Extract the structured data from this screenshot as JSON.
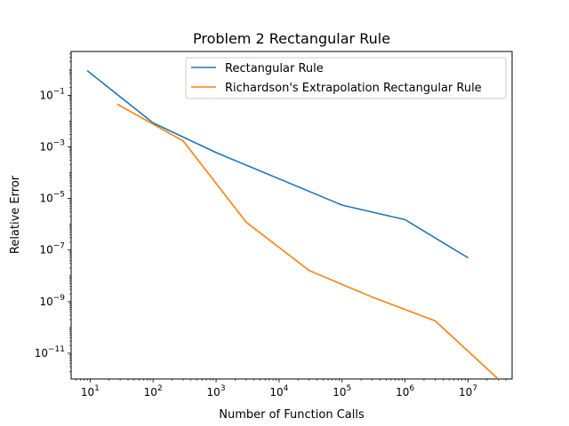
{
  "chart_data": {
    "type": "line",
    "title": "Problem 2 Rectangular Rule",
    "xlabel": "Number of Function Calls",
    "ylabel": "Relative Error",
    "xscale": "log",
    "yscale": "log",
    "xlim": [
      5,
      50000000
    ],
    "ylim": [
      1e-12,
      5
    ],
    "grid": false,
    "legend_position": "top-right",
    "x_ticks": [
      {
        "value": 10,
        "base": "10",
        "exp": "1"
      },
      {
        "value": 100,
        "base": "10",
        "exp": "2"
      },
      {
        "value": 1000,
        "base": "10",
        "exp": "3"
      },
      {
        "value": 10000,
        "base": "10",
        "exp": "4"
      },
      {
        "value": 100000,
        "base": "10",
        "exp": "5"
      },
      {
        "value": 1000000,
        "base": "10",
        "exp": "6"
      },
      {
        "value": 10000000,
        "base": "10",
        "exp": "7"
      }
    ],
    "y_ticks": [
      {
        "value": 0.1,
        "base": "10",
        "exp": "−1"
      },
      {
        "value": 0.001,
        "base": "10",
        "exp": "−3"
      },
      {
        "value": 1e-05,
        "base": "10",
        "exp": "−5"
      },
      {
        "value": 1e-07,
        "base": "10",
        "exp": "−7"
      },
      {
        "value": 1e-09,
        "base": "10",
        "exp": "−9"
      },
      {
        "value": 1e-11,
        "base": "10",
        "exp": "−11"
      }
    ],
    "series": [
      {
        "name": "Rectangular Rule",
        "color": "#1f77b4",
        "x": [
          9,
          100,
          1000,
          100000,
          1000000,
          10000000
        ],
        "y": [
          0.9,
          0.0085,
          0.0006,
          5.5e-06,
          1.5e-06,
          5e-08
        ]
      },
      {
        "name": "Richardson's Extrapolation Rectangular Rule",
        "color": "#ff7f0e",
        "x": [
          27,
          300,
          3000,
          30000,
          300000,
          3000000,
          30000000
        ],
        "y": [
          0.045,
          0.0017,
          1.2e-06,
          1.6e-08,
          1.5e-09,
          1.8e-10,
          1e-12
        ]
      }
    ]
  }
}
